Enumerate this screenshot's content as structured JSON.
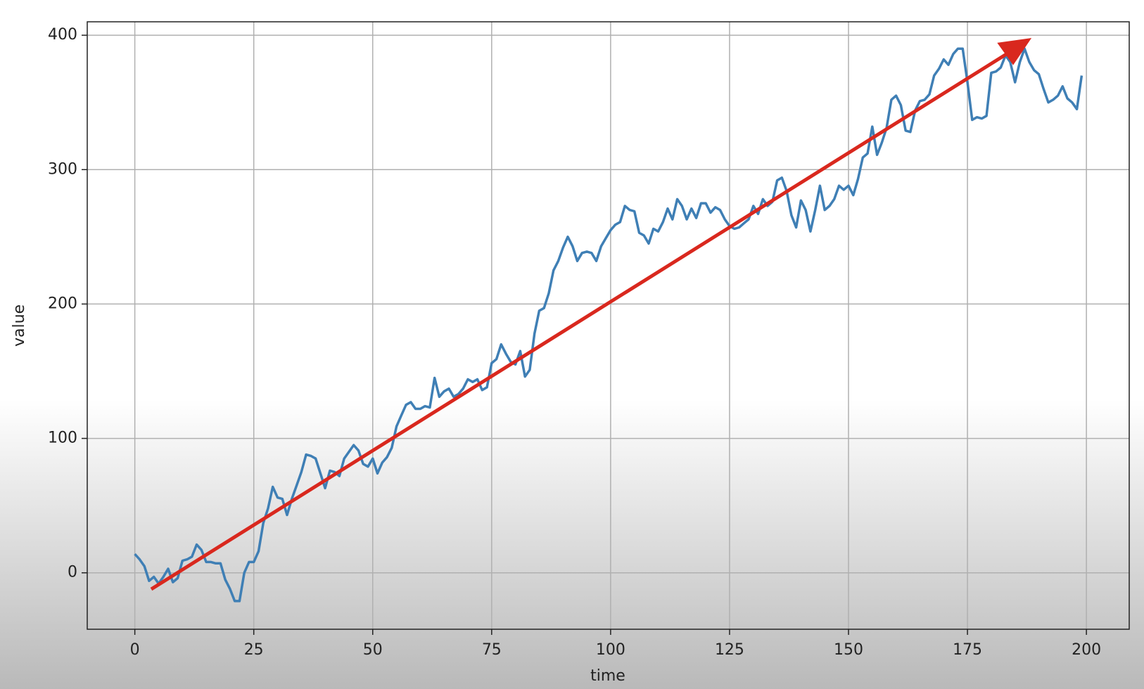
{
  "chart_data": {
    "type": "line",
    "x_label": "time",
    "y_label": "value",
    "x": [
      0,
      1,
      2,
      3,
      4,
      5,
      6,
      7,
      8,
      9,
      10,
      11,
      12,
      13,
      14,
      15,
      16,
      17,
      18,
      19,
      20,
      21,
      22,
      23,
      24,
      25,
      26,
      27,
      28,
      29,
      30,
      31,
      32,
      33,
      34,
      35,
      36,
      37,
      38,
      39,
      40,
      41,
      42,
      43,
      44,
      45,
      46,
      47,
      48,
      49,
      50,
      51,
      52,
      53,
      54,
      55,
      56,
      57,
      58,
      59,
      60,
      61,
      62,
      63,
      64,
      65,
      66,
      67,
      68,
      69,
      70,
      71,
      72,
      73,
      74,
      75,
      76,
      77,
      78,
      79,
      80,
      81,
      82,
      83,
      84,
      85,
      86,
      87,
      88,
      89,
      90,
      91,
      92,
      93,
      94,
      95,
      96,
      97,
      98,
      99,
      100,
      101,
      102,
      103,
      104,
      105,
      106,
      107,
      108,
      109,
      110,
      111,
      112,
      113,
      114,
      115,
      116,
      117,
      118,
      119,
      120,
      121,
      122,
      123,
      124,
      125,
      126,
      127,
      128,
      129,
      130,
      131,
      132,
      133,
      134,
      135,
      136,
      137,
      138,
      139,
      140,
      141,
      142,
      143,
      144,
      145,
      146,
      147,
      148,
      149,
      150,
      151,
      152,
      153,
      154,
      155,
      156,
      157,
      158,
      159,
      160,
      161,
      162,
      163,
      164,
      165,
      166,
      167,
      168,
      169,
      170,
      171,
      172,
      173,
      174,
      175,
      176,
      177,
      178,
      179,
      180,
      181,
      182,
      183,
      184,
      185,
      186,
      187,
      188,
      189,
      190,
      191,
      192,
      193,
      194,
      195,
      196,
      197,
      198,
      199
    ],
    "series": [
      {
        "color": "#3f7fb5",
        "values": [
          14,
          10,
          5,
          -6,
          -3,
          -8,
          -3,
          3,
          -7,
          -4,
          9,
          10,
          12,
          21,
          17,
          8,
          8,
          7,
          7,
          -5,
          -12,
          -21,
          -21,
          0,
          8,
          8,
          16,
          37,
          48,
          64,
          56,
          55,
          43,
          55,
          65,
          75,
          88,
          87,
          85,
          74,
          63,
          76,
          75,
          72,
          85,
          90,
          95,
          91,
          81,
          79,
          85,
          74,
          82,
          86,
          93,
          109,
          117,
          125,
          127,
          122,
          122,
          124,
          123,
          145,
          131,
          135,
          137,
          131,
          133,
          137,
          144,
          142,
          144,
          136,
          138,
          156,
          159,
          170,
          163,
          157,
          155,
          165,
          146,
          151,
          178,
          195,
          197,
          208,
          225,
          232,
          242,
          250,
          243,
          232,
          238,
          239,
          238,
          232,
          243,
          249,
          255,
          259,
          261,
          273,
          270,
          269,
          253,
          251,
          245,
          256,
          254,
          261,
          271,
          263,
          278,
          273,
          263,
          271,
          264,
          275,
          275,
          268,
          272,
          270,
          263,
          258,
          256,
          257,
          260,
          263,
          273,
          267,
          278,
          273,
          276,
          292,
          294,
          284,
          266,
          257,
          277,
          270,
          254,
          270,
          288,
          270,
          273,
          278,
          288,
          285,
          288,
          281,
          293,
          309,
          312,
          332,
          311,
          320,
          331,
          352,
          355,
          348,
          329,
          328,
          344,
          351,
          352,
          356,
          370,
          375,
          382,
          378,
          386,
          390,
          390,
          365,
          337,
          339,
          338,
          340,
          372,
          373,
          376,
          385,
          380,
          365,
          380,
          390,
          380,
          374,
          371,
          360,
          350,
          352,
          355,
          362,
          353,
          350,
          345,
          370
        ]
      }
    ],
    "xlim": [
      -10,
      209
    ],
    "ylim": [
      -42,
      410
    ],
    "xticks": [
      0,
      25,
      50,
      75,
      100,
      125,
      150,
      175,
      200
    ],
    "yticks": [
      0,
      100,
      200,
      300,
      400
    ],
    "grid": true
  }
}
